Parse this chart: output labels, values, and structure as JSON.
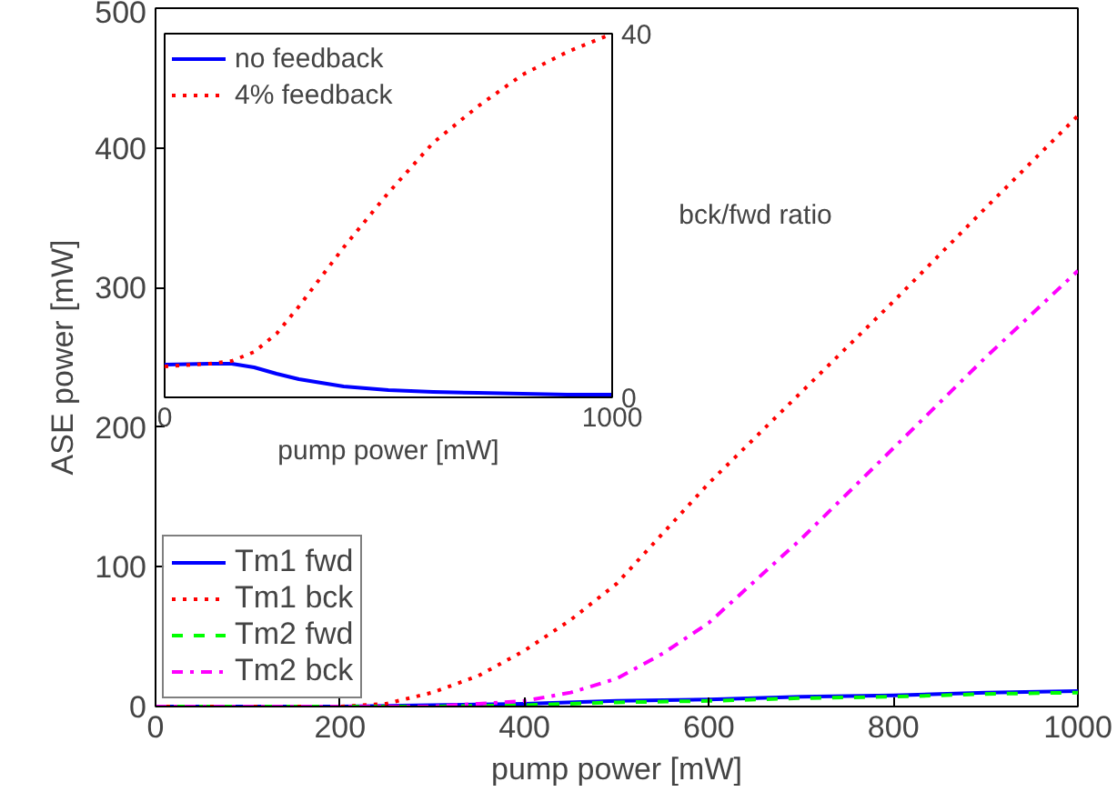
{
  "chart_data": [
    {
      "type": "line",
      "xlabel": "pump power [mW]",
      "ylabel": "ASE power [mW]",
      "xlim": [
        0,
        1000
      ],
      "ylim": [
        0,
        500
      ],
      "xticks": [
        0,
        200,
        400,
        600,
        800,
        1000
      ],
      "yticks": [
        0,
        100,
        200,
        300,
        400,
        500
      ],
      "grid": false,
      "legend": "bottom left",
      "series": [
        {
          "name": "Tm1 fwd",
          "color": "#0000ff",
          "line_style": "solid",
          "x": [
            0,
            200,
            300,
            400,
            500,
            600,
            700,
            800,
            900,
            1000
          ],
          "values": [
            0,
            0,
            1,
            2,
            4,
            5,
            7,
            8,
            10,
            11
          ]
        },
        {
          "name": "Tm1 bck",
          "color": "#ff0000",
          "line_style": "dotted",
          "x": [
            0,
            200,
            250,
            300,
            350,
            400,
            450,
            500,
            600,
            700,
            800,
            900,
            1000
          ],
          "values": [
            0,
            0,
            2,
            10,
            22,
            40,
            62,
            88,
            160,
            225,
            290,
            357,
            423
          ]
        },
        {
          "name": "Tm2 fwd",
          "color": "#00ff00",
          "line_style": "dashed",
          "x": [
            0,
            200,
            300,
            400,
            500,
            600,
            700,
            800,
            900,
            1000
          ],
          "values": [
            0,
            0,
            0,
            1,
            3,
            4,
            6,
            7,
            9,
            10
          ]
        },
        {
          "name": "Tm2 bck",
          "color": "#ff00ff",
          "line_style": "dashdot",
          "x": [
            0,
            300,
            350,
            400,
            450,
            500,
            550,
            600,
            700,
            800,
            900,
            1000
          ],
          "values": [
            0,
            0,
            2,
            4,
            10,
            20,
            38,
            60,
            120,
            185,
            250,
            312
          ]
        }
      ]
    },
    {
      "type": "line",
      "xlabel": "pump power [mW]",
      "y2label": "bck/fwd ratio",
      "xlim": [
        0,
        1000
      ],
      "xticks": [
        0,
        1000
      ],
      "y2lim": [
        0,
        40
      ],
      "y2ticks": [
        0,
        40
      ],
      "grid": false,
      "legend": "top left",
      "series": [
        {
          "name": "no feedback",
          "color": "#0000ff",
          "line_style": "solid",
          "axis": "y2",
          "x": [
            0,
            100,
            150,
            200,
            250,
            300,
            400,
            500,
            600,
            700,
            800,
            900,
            1000
          ],
          "values": [
            3.6,
            3.7,
            3.7,
            3.3,
            2.6,
            2,
            1.2,
            0.8,
            0.6,
            0.5,
            0.4,
            0.3,
            0.3
          ]
        },
        {
          "name": "4% feedback",
          "color": "#ff0000",
          "line_style": "dotted",
          "axis": "y2",
          "x": [
            0,
            100,
            150,
            200,
            250,
            300,
            400,
            500,
            600,
            700,
            800,
            900,
            1000
          ],
          "values": [
            3.4,
            3.7,
            4,
            5,
            7,
            10,
            16.5,
            22.5,
            28,
            32,
            35.5,
            38,
            40
          ]
        }
      ]
    }
  ]
}
